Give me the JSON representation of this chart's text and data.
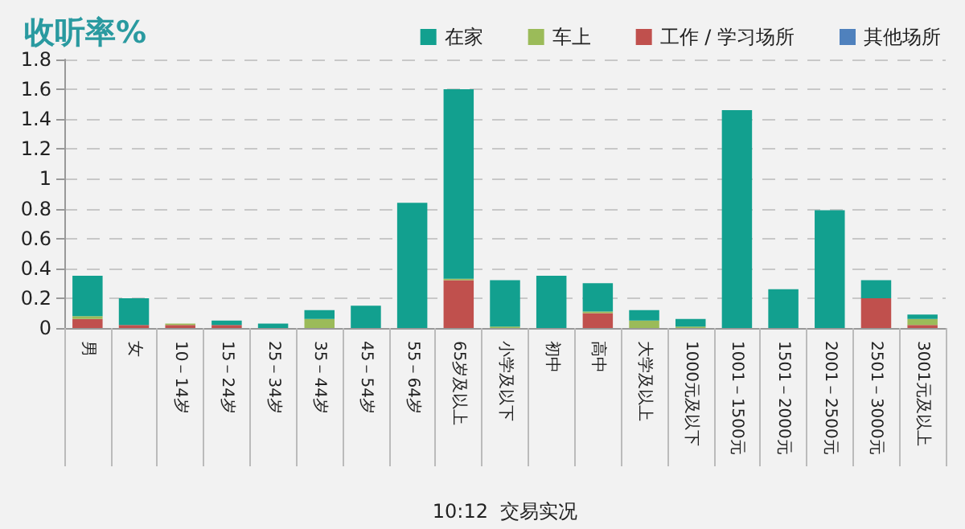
{
  "chart_data": {
    "type": "bar",
    "title": "收听率%",
    "xlabel": "10:12  交易实况",
    "categories": [
      "男",
      "女",
      "10－14岁",
      "15－24岁",
      "25－34岁",
      "35－44岁",
      "45－54岁",
      "55－64岁",
      "65岁及以上",
      "小学及以下",
      "初中",
      "高中",
      "大学及以上",
      "1000元及以下",
      "1001－1500元",
      "1501－2000元",
      "2001－2500元",
      "2501－3000元",
      "3001元及以上"
    ],
    "stacked": true,
    "series": [
      {
        "name": "其他场所",
        "color": "#4f81bd",
        "values": [
          0,
          0,
          0,
          0,
          0,
          0,
          0,
          0,
          0,
          0,
          0,
          0,
          0,
          0,
          0,
          0,
          0,
          0,
          0
        ]
      },
      {
        "name": "工作 / 学习场所",
        "color": "#c0504d",
        "values": [
          0.06,
          0.02,
          0.02,
          0.02,
          0,
          0,
          0,
          0,
          0.32,
          0,
          0,
          0.1,
          0,
          0,
          0,
          0,
          0,
          0.2,
          0.02
        ]
      },
      {
        "name": "车上",
        "color": "#9bbb59",
        "values": [
          0.02,
          0,
          0.01,
          0,
          0,
          0.06,
          0,
          0,
          0.01,
          0.01,
          0,
          0.01,
          0.05,
          0.01,
          0,
          0,
          0,
          0,
          0.04
        ]
      },
      {
        "name": "在家",
        "color": "#12a08f",
        "values": [
          0.27,
          0.18,
          0,
          0.03,
          0.03,
          0.06,
          0.15,
          0.84,
          1.27,
          0.31,
          0.35,
          0.19,
          0.07,
          0.05,
          1.46,
          0.26,
          0.79,
          0.12,
          0.03
        ]
      }
    ],
    "ylim": [
      0,
      1.8
    ],
    "yticks": [
      0,
      0.2,
      0.4,
      0.6,
      0.8,
      1,
      1.2,
      1.4,
      1.6,
      1.8
    ],
    "grid": "y",
    "legend": "top right"
  }
}
